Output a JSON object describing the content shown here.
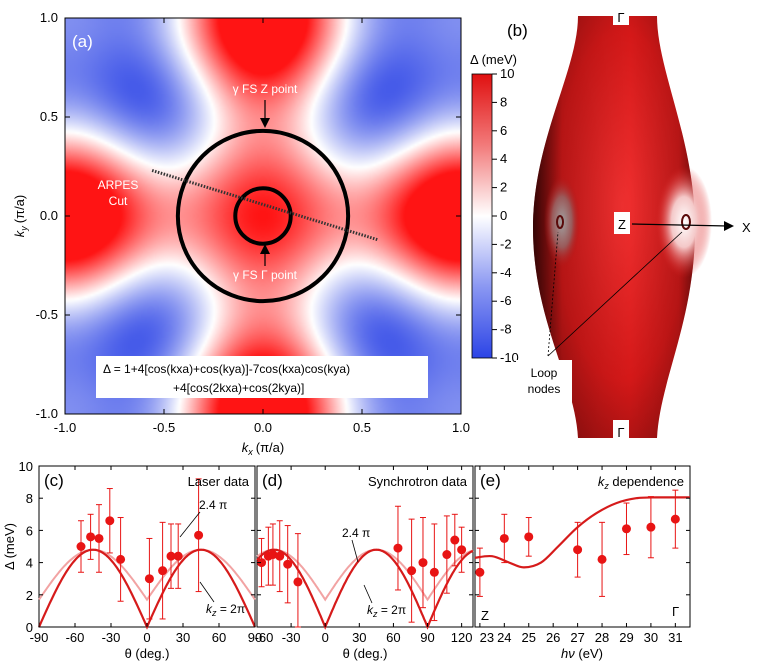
{
  "chart_data": [
    {
      "id": "a",
      "type": "heatmap",
      "panel_label": "(a)",
      "xlabel_var": "k",
      "xlabel_sub": "x",
      "xlabel_unit": "(π/a)",
      "ylabel_var": "k",
      "ylabel_sub": "y",
      "ylabel_unit": "(π/a)",
      "xlim": [
        -1.0,
        1.0
      ],
      "ylim": [
        -1.0,
        1.0
      ],
      "xticks": [
        -1.0,
        -0.5,
        0.0,
        0.5,
        1.0
      ],
      "yticks": [
        -1.0,
        -0.5,
        0.0,
        0.5,
        1.0
      ],
      "tick_labels": [
        "-1.0",
        "-0.5",
        "0.0",
        "0.5",
        "1.0"
      ],
      "formula_terms": {
        "c1": 1,
        "c2": 4,
        "c3": -7,
        "c4": 4
      },
      "formula_line1": "Δ = 1+4[cos(kxa)+cos(kya)]-7cos(kxa)cos(kya)",
      "formula_line2": "+4[cos(2kxa)+cos(2kya)]",
      "colorbar": {
        "title": "Δ (meV)",
        "range": [
          -10,
          10
        ],
        "ticks": [
          10,
          8,
          6,
          4,
          2,
          0,
          -2,
          -4,
          -6,
          -8,
          -10
        ],
        "tick_labels": [
          "10",
          "8",
          "6",
          "4",
          "2",
          "0",
          "-2",
          "-4",
          "-6",
          "-8",
          "-10"
        ]
      },
      "circles": [
        {
          "name": "gamma-fs-z-point",
          "radius": 0.43
        },
        {
          "name": "gamma-fs-gamma-point",
          "radius": 0.14
        }
      ],
      "arpes_cut": {
        "from": [
          -0.56,
          0.23
        ],
        "to": [
          0.58,
          -0.12
        ]
      },
      "annotations": {
        "z_point": "γ FS Z point",
        "gamma_point": "γ FS Γ point",
        "arpes_line1": "ARPES",
        "arpes_line2": "Cut"
      }
    },
    {
      "id": "c",
      "type": "scatter",
      "panel_label": "(c)",
      "title": "Laser data",
      "xlabel": "θ (deg.)",
      "ylabel": "Δ (meV)",
      "xlim": [
        -90,
        90
      ],
      "ylim": [
        0,
        10
      ],
      "xticks": [
        -90,
        -60,
        -30,
        0,
        30,
        60,
        90
      ],
      "xtick_labels": [
        "-90",
        "-60",
        "-30",
        "0",
        "30",
        "60",
        "90"
      ],
      "yticks": [
        0,
        2,
        4,
        6,
        8,
        10
      ],
      "ytick_labels": [
        "0",
        "2",
        "4",
        "6",
        "8",
        "10"
      ],
      "points": [
        {
          "x": -55,
          "y": 5.0,
          "err": 1.6
        },
        {
          "x": -47,
          "y": 5.6,
          "err": 1.4
        },
        {
          "x": -40,
          "y": 5.5,
          "err": 2.1
        },
        {
          "x": -31,
          "y": 6.6,
          "err": 2.0
        },
        {
          "x": -22,
          "y": 4.2,
          "err": 2.6
        },
        {
          "x": 2,
          "y": 3.0,
          "err": 2.5
        },
        {
          "x": 13,
          "y": 3.5,
          "err": 3.0
        },
        {
          "x": 20,
          "y": 4.4,
          "err": 2.0
        },
        {
          "x": 26,
          "y": 4.4,
          "err": 2.0
        },
        {
          "x": 43,
          "y": 5.7,
          "err": 3.5
        }
      ],
      "fit_curves": [
        {
          "name": "kz-2pi",
          "amplitude": 4.8,
          "offset": 0.0,
          "color": "#d61b1b",
          "width": 2.2
        },
        {
          "name": "kz-2.4pi",
          "amplitude": 3.1,
          "offset": 1.7,
          "color": "#f2a3a3",
          "width": 2
        }
      ],
      "labels": {
        "high": "2.4 π",
        "low_var": "k",
        "low_sub": "z",
        "low_val": " = 2π"
      }
    },
    {
      "id": "d",
      "type": "scatter",
      "panel_label": "(d)",
      "title": "Synchrotron data",
      "xlabel": "θ (deg.)",
      "xlim": [
        -60,
        130
      ],
      "ylim": [
        0,
        10
      ],
      "xticks": [
        -60,
        -30,
        0,
        30,
        60,
        90,
        120
      ],
      "xtick_labels": [
        "-60",
        "-30",
        "0",
        "30",
        "60",
        "90",
        "120"
      ],
      "points": [
        {
          "x": -56,
          "y": 4.0,
          "err": 1.5
        },
        {
          "x": -50,
          "y": 4.4,
          "err": 1.8
        },
        {
          "x": -46,
          "y": 4.5,
          "err": 1.9
        },
        {
          "x": -40,
          "y": 4.4,
          "err": 2.2
        },
        {
          "x": -33,
          "y": 3.9,
          "err": 2.4
        },
        {
          "x": -24,
          "y": 2.8,
          "err": 3.0
        },
        {
          "x": 64,
          "y": 4.9,
          "err": 2.6
        },
        {
          "x": 76,
          "y": 3.5,
          "err": 3.2
        },
        {
          "x": 86,
          "y": 4.0,
          "err": 2.8
        },
        {
          "x": 96,
          "y": 3.4,
          "err": 3.0
        },
        {
          "x": 107,
          "y": 4.5,
          "err": 2.4
        },
        {
          "x": 114,
          "y": 5.4,
          "err": 1.6
        },
        {
          "x": 120,
          "y": 4.8,
          "err": 1.4
        }
      ],
      "fit_curves": [
        {
          "name": "kz-2pi",
          "amplitude": 4.8,
          "offset": 0.0,
          "color": "#d61b1b",
          "width": 2.2
        },
        {
          "name": "kz-2.4pi",
          "amplitude": 3.1,
          "offset": 1.7,
          "color": "#f2a3a3",
          "width": 2
        }
      ],
      "labels": {
        "high": "2.4 π",
        "low_var": "k",
        "low_sub": "z",
        "low_val": " = 2π"
      }
    },
    {
      "id": "e",
      "type": "scatter",
      "panel_label": "(e)",
      "title_var": "k",
      "title_sub": "z",
      "title_rest": " dependence",
      "xlabel_var": "hν",
      "xlabel_unit": " (eV)",
      "xlim": [
        22.8,
        31.6
      ],
      "ylim": [
        0,
        10
      ],
      "xticks": [
        23,
        24,
        25,
        26,
        27,
        28,
        29,
        30,
        31
      ],
      "xtick_labels": [
        "23",
        "24",
        "25",
        "26",
        "27",
        "28",
        "29",
        "30",
        "31"
      ],
      "points": [
        {
          "x": 23,
          "y": 3.4,
          "err": 1.5
        },
        {
          "x": 24,
          "y": 5.5,
          "err": 1.5
        },
        {
          "x": 25,
          "y": 5.6,
          "err": 1.2
        },
        {
          "x": 27,
          "y": 4.8,
          "err": 1.7
        },
        {
          "x": 28,
          "y": 4.2,
          "err": 2.3
        },
        {
          "x": 29,
          "y": 6.1,
          "err": 1.6
        },
        {
          "x": 30,
          "y": 6.2,
          "err": 1.9
        },
        {
          "x": 31,
          "y": 6.7,
          "err": 1.8
        }
      ],
      "fit_curve": [
        [
          22.8,
          4.3
        ],
        [
          23.5,
          4.4
        ],
        [
          24.2,
          4.0
        ],
        [
          24.8,
          3.7
        ],
        [
          25.5,
          4.0
        ],
        [
          26.2,
          5.0
        ],
        [
          27.0,
          6.2
        ],
        [
          27.8,
          7.1
        ],
        [
          28.6,
          7.7
        ],
        [
          29.4,
          8.0
        ],
        [
          30.2,
          8.05
        ],
        [
          31.0,
          8.05
        ],
        [
          31.6,
          8.05
        ]
      ],
      "end_labels": {
        "left": "Z",
        "right": "Γ"
      }
    }
  ],
  "fermi_surface": {
    "panel_label": "(b)",
    "top_label": "Γ",
    "bottom_label": "Γ",
    "z_label": "Z",
    "x_label": "X",
    "loop_nodes_line1": "Loop",
    "loop_nodes_line2": "nodes"
  },
  "colors": {
    "red": "#e01c1c",
    "white": "#ffffff",
    "blue": "#3a50e8",
    "fit_main": "#d61b1b",
    "fit_light": "#f2a3a3",
    "point": "#e81414"
  }
}
